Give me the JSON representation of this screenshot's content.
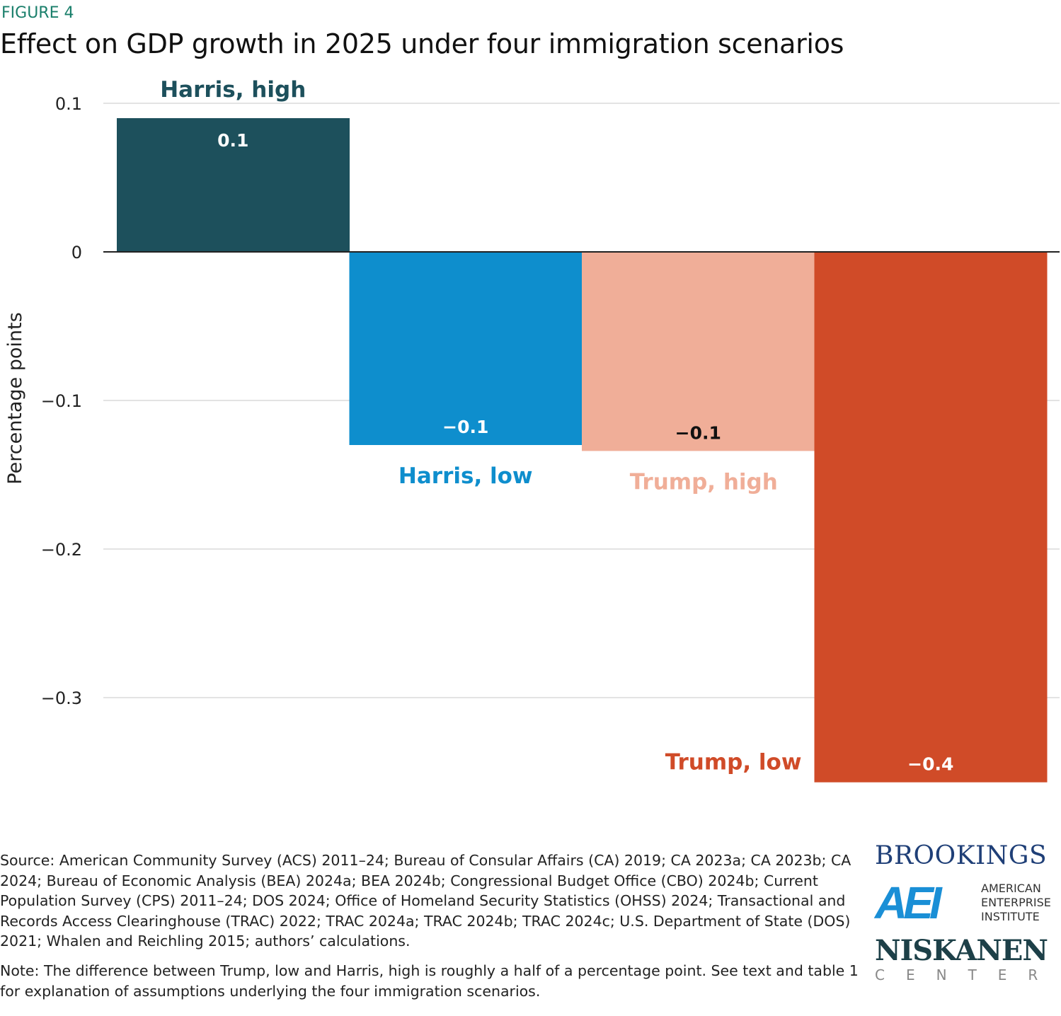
{
  "figure_label": "FIGURE 4",
  "chart_data": {
    "type": "bar",
    "title": "Effect on GDP growth in 2025 under four immigration scenarios",
    "xlabel": "",
    "ylabel": "Percentage points",
    "ylim": [
      -0.36,
      0.1
    ],
    "yticks": [
      0.1,
      0,
      -0.1,
      -0.2,
      -0.3
    ],
    "ytick_labels": [
      "0.1",
      "0",
      "−0.1",
      "−0.2",
      "−0.3"
    ],
    "grid": true,
    "categories": [
      "Harris, high",
      "Harris, low",
      "Trump, high",
      "Trump, low"
    ],
    "values": [
      0.09,
      -0.13,
      -0.134,
      -0.357
    ],
    "data_labels": [
      "0.1",
      "−0.1",
      "−0.1",
      "−0.4"
    ],
    "colors": [
      "#1d505c",
      "#0e8ecd",
      "#f0ae98",
      "#d04b28"
    ],
    "label_colors": [
      "#ffffff",
      "#ffffff",
      "#111111",
      "#ffffff"
    ]
  },
  "footer": {
    "source": "Source: American Community Survey (ACS) 2011–24; Bureau of Consular Affairs (CA) 2019; CA 2023a; CA 2023b; CA 2024; Bureau of Economic Analysis (BEA) 2024a; BEA 2024b; Congressional Budget Office (CBO) 2024b; Current Population Survey (CPS) 2011–24; DOS 2024; Office of Homeland Security Statistics (OHSS) 2024; Transactional and Records Access Clearinghouse (TRAC) 2022; TRAC 2024a; TRAC 2024b; TRAC 2024c; U.S. Department of State (DOS) 2021; Whalen and Reichling 2015; authors’ calculations.",
    "note": "Note: The difference between Trump, low and Harris, high is roughly a half of a percentage point. See text and table 1 for explanation of assumptions underlying the four immigration scenarios."
  },
  "logos": {
    "brookings": "BROOKINGS",
    "aei_mark": "AEI",
    "aei_text": [
      "AMERICAN",
      "ENTERPRISE",
      "INSTITUTE"
    ],
    "niskanen": "NISKANEN",
    "niskanen_sub": "CENTER"
  }
}
